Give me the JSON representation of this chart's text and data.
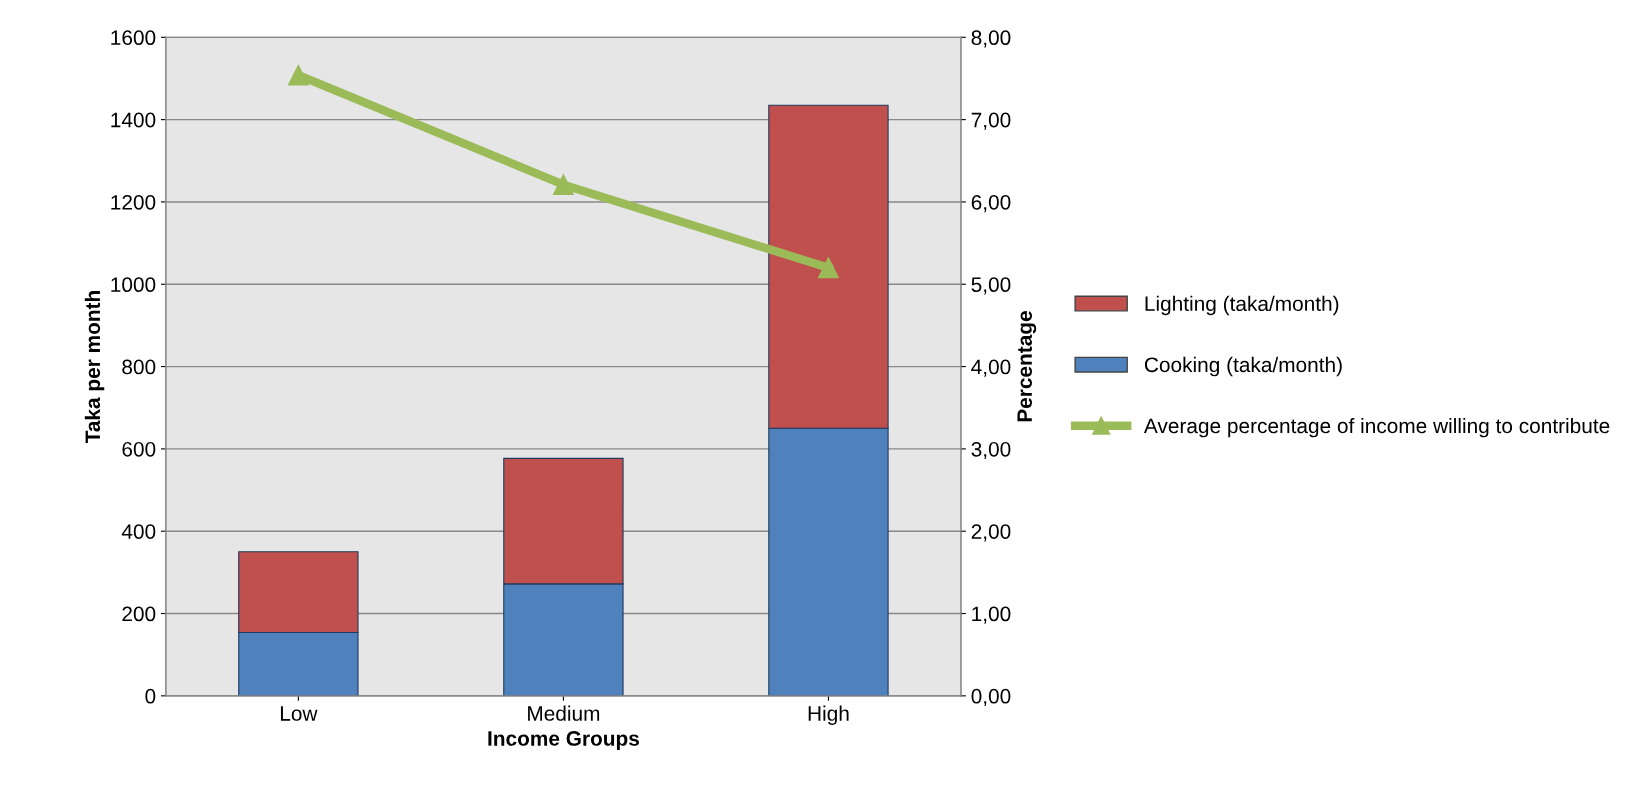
{
  "chart_data": {
    "type": "bar",
    "stacked": true,
    "xlabel": "Income Groups",
    "ylabel": "Taka per month",
    "y2label": "Percentage",
    "categories": [
      "Low",
      "Medium",
      "High"
    ],
    "series": [
      {
        "name": "Cooking (taka/month)",
        "color": "#4f81bd",
        "values": [
          154,
          272,
          650
        ]
      },
      {
        "name": "Lighting (taka/month)",
        "color": "#c0504d",
        "values": [
          196,
          305,
          785
        ]
      },
      {
        "name": "Average percentage of income willing to contribute",
        "type": "line",
        "axis": "y2",
        "color": "#9bbb59",
        "marker": "triangle",
        "values": [
          7.54,
          6.21,
          5.2
        ]
      }
    ],
    "ylim": [
      0,
      1600
    ],
    "yticks": [
      0,
      200,
      400,
      600,
      800,
      1000,
      1200,
      1400,
      1600
    ],
    "y2lim": [
      0,
      8
    ],
    "y2ticks": [
      {
        "value": 0,
        "label": "0,00"
      },
      {
        "value": 1,
        "label": "1,00"
      },
      {
        "value": 2,
        "label": "2,00"
      },
      {
        "value": 3,
        "label": "3,00"
      },
      {
        "value": 4,
        "label": "4,00"
      },
      {
        "value": 5,
        "label": "5,00"
      },
      {
        "value": 6,
        "label": "6,00"
      },
      {
        "value": 7,
        "label": "7,00"
      },
      {
        "value": 8,
        "label": "8,00"
      }
    ],
    "grid": "y",
    "legend": "right"
  }
}
